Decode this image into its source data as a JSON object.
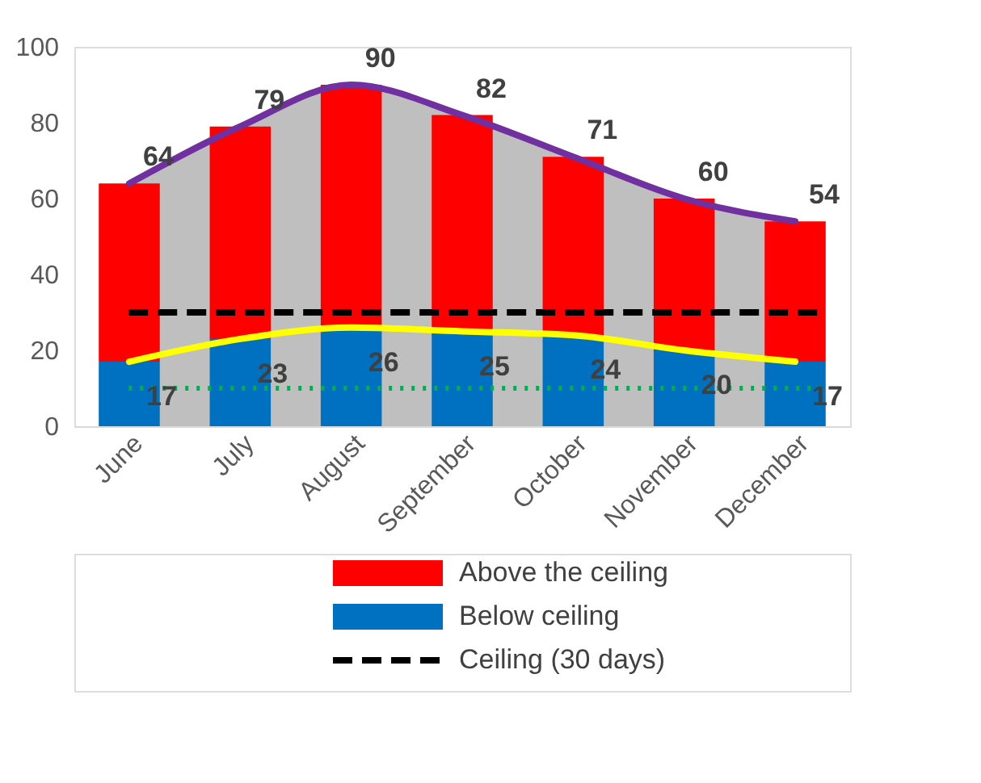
{
  "chart_data": {
    "type": "bar",
    "categories": [
      "June",
      "July",
      "August",
      "September",
      "October",
      "November",
      "December"
    ],
    "series": [
      {
        "name": "Below ceiling",
        "color": "#0070c0",
        "values": [
          17,
          23,
          26,
          25,
          24,
          20,
          17
        ]
      },
      {
        "name": "Above the ceiling",
        "color": "#ff0000",
        "values": [
          47,
          56,
          64,
          57,
          47,
          40,
          37
        ]
      },
      {
        "type": "line",
        "color": "#7030a0",
        "values": [
          64,
          79,
          90,
          82,
          71,
          60,
          54
        ],
        "lower": [
          0,
          0,
          0,
          0,
          0,
          0,
          0
        ],
        "upper": [
          64,
          79,
          90,
          82,
          71,
          60,
          54
        ],
        "value_labels": [
          "64",
          "79",
          "90",
          "82",
          "71",
          "60",
          "54"
        ]
      },
      {
        "type": "line",
        "color": "#ffff00",
        "values": [
          17,
          23,
          26,
          25,
          24,
          20,
          17
        ],
        "value_labels": [
          "17",
          "23",
          "26",
          "25",
          "24",
          "20",
          "17"
        ]
      }
    ],
    "stacked": true,
    "ylim": [
      0,
      100
    ],
    "yticks": [
      0,
      20,
      40,
      60,
      80,
      100
    ],
    "grid": false,
    "legend": "bottom",
    "ref_lines": [
      {
        "axis": "y",
        "value": 30,
        "label": "Ceiling (30 days)",
        "color": "#000000",
        "line_style": "dashed"
      },
      {
        "axis": "y",
        "value": 10,
        "color": "#00b050",
        "line_style": "dotted"
      }
    ]
  }
}
